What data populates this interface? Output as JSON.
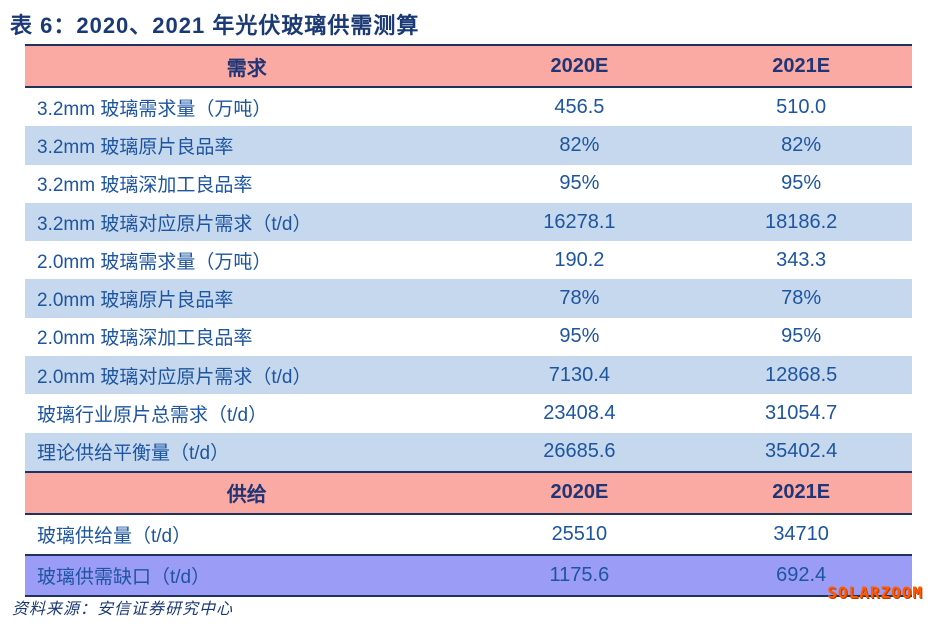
{
  "title": "表 6：2020、2021 年光伏玻璃供需测算",
  "source": "资料来源：安信证券研究中心",
  "watermark": "SOLARZOOM",
  "colors": {
    "header_bg": "#fba9a3",
    "alt_row_bg": "#c6d8ee",
    "gap_row_bg": "#9b9cf5",
    "border_navy": "#1f3360",
    "text_blue": "#1d55a0",
    "title_navy": "#1b3a75",
    "watermark_orange": "#ff5a00"
  },
  "table": {
    "demand_header": {
      "label": "需求",
      "col2020": "2020E",
      "col2021": "2021E"
    },
    "supply_header": {
      "label": "供给",
      "col2020": "2020E",
      "col2021": "2021E"
    },
    "demand_rows": [
      {
        "label": "3.2mm 玻璃需求量（万吨）",
        "v2020": "456.5",
        "v2021": "510.0"
      },
      {
        "label": "3.2mm 玻璃原片良品率",
        "v2020": "82%",
        "v2021": "82%"
      },
      {
        "label": "3.2mm 玻璃深加工良品率",
        "v2020": "95%",
        "v2021": "95%"
      },
      {
        "label": "3.2mm 玻璃对应原片需求（t/d）",
        "v2020": "16278.1",
        "v2021": "18186.2"
      },
      {
        "label": "2.0mm 玻璃需求量（万吨）",
        "v2020": "190.2",
        "v2021": "343.3"
      },
      {
        "label": "2.0mm 玻璃原片良品率",
        "v2020": "78%",
        "v2021": "78%"
      },
      {
        "label": "2.0mm 玻璃深加工良品率",
        "v2020": "95%",
        "v2021": "95%"
      },
      {
        "label": "2.0mm 玻璃对应原片需求（t/d）",
        "v2020": "7130.4",
        "v2021": "12868.5"
      },
      {
        "label": "玻璃行业原片总需求（t/d）",
        "v2020": "23408.4",
        "v2021": "31054.7"
      },
      {
        "label": "理论供给平衡量（t/d）",
        "v2020": "26685.6",
        "v2021": "35402.4"
      }
    ],
    "supply_rows": [
      {
        "label": "玻璃供给量（t/d）",
        "v2020": "25510",
        "v2021": "34710"
      },
      {
        "label": "玻璃供需缺口（t/d）",
        "v2020": "1175.6",
        "v2021": "692.4"
      }
    ]
  }
}
